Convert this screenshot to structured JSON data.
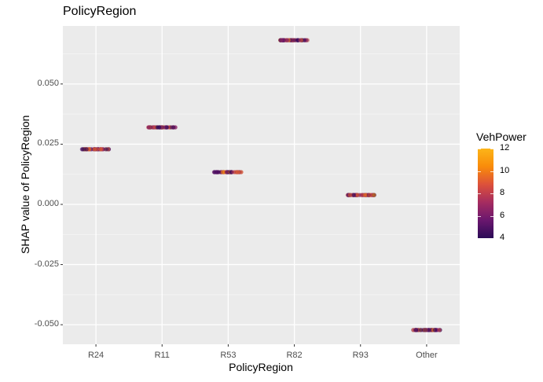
{
  "chart_data": {
    "type": "scatter",
    "title": "PolicyRegion",
    "xlabel": "PolicyRegion",
    "ylabel": "SHAP value of PolicyRegion",
    "categories": [
      "R24",
      "R11",
      "R53",
      "R82",
      "R93",
      "Other"
    ],
    "values": [
      0.0229,
      0.032,
      0.0134,
      0.0682,
      0.0039,
      -0.0522
    ],
    "yticks": [
      "0.050",
      "0.025",
      "0.000",
      "-0.025",
      "-0.050"
    ],
    "ytick_values": [
      0.05,
      0.025,
      0.0,
      -0.025,
      -0.05
    ],
    "ylim": [
      -0.058,
      0.073
    ],
    "grid": true,
    "color_legend": {
      "title": "VehPower",
      "ticks": [
        "12",
        "10",
        "8",
        "6",
        "4"
      ],
      "range": [
        4,
        12
      ],
      "palette": [
        "#2b0b57",
        "#6a176e",
        "#a52c60",
        "#dd513a",
        "#f98c0a",
        "#fcb519"
      ],
      "position": "right"
    }
  }
}
